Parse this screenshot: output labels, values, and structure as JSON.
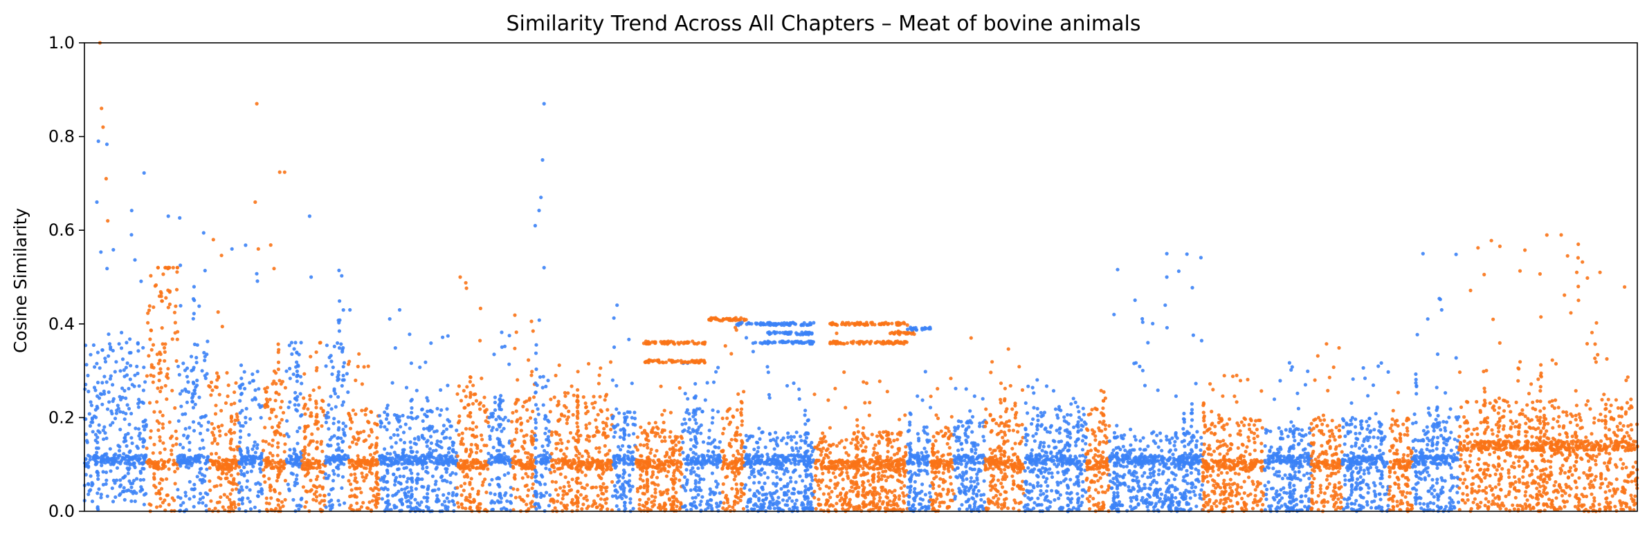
{
  "chart_data": {
    "type": "scatter",
    "title": "Similarity Trend Across All Chapters – Meat of bovine animals",
    "xlabel": "",
    "ylabel": "Cosine Similarity",
    "ylim": [
      0,
      1.0
    ],
    "y_ticks": [
      "0.0",
      "0.2",
      "0.4",
      "0.6",
      "0.8",
      "1.0"
    ],
    "x_ticks_visible": false,
    "grid": false,
    "legend": "none",
    "colors": {
      "blue": "#3b82f6",
      "orange": "#f97316"
    },
    "chapter_segments": [
      {
        "x_start": 0.0,
        "x_end": 0.04,
        "color": "blue",
        "base_low": 0.02,
        "base_high": 0.36,
        "band": 0.11,
        "peak": 0.79
      },
      {
        "x_start": 0.04,
        "x_end": 0.06,
        "color": "orange",
        "base_low": 0.0,
        "base_high": 0.52,
        "band": 0.1,
        "peak": 0.52
      },
      {
        "x_start": 0.06,
        "x_end": 0.08,
        "color": "blue",
        "base_low": 0.0,
        "base_high": 0.37,
        "band": 0.11,
        "peak": 0.63
      },
      {
        "x_start": 0.08,
        "x_end": 0.1,
        "color": "orange",
        "base_low": 0.0,
        "base_high": 0.3,
        "band": 0.1,
        "peak": 0.58
      },
      {
        "x_start": 0.1,
        "x_end": 0.115,
        "color": "blue",
        "base_low": 0.0,
        "base_high": 0.3,
        "band": 0.11,
        "peak": 0.57
      },
      {
        "x_start": 0.115,
        "x_end": 0.13,
        "color": "orange",
        "base_low": 0.0,
        "base_high": 0.3,
        "band": 0.1,
        "peak": 0.87
      },
      {
        "x_start": 0.13,
        "x_end": 0.14,
        "color": "blue",
        "base_low": 0.0,
        "base_high": 0.36,
        "band": 0.11,
        "peak": 0.36
      },
      {
        "x_start": 0.14,
        "x_end": 0.155,
        "color": "orange",
        "base_low": 0.0,
        "base_high": 0.26,
        "band": 0.1,
        "peak": 0.36
      },
      {
        "x_start": 0.155,
        "x_end": 0.17,
        "color": "blue",
        "base_low": 0.0,
        "base_high": 0.36,
        "band": 0.11,
        "peak": 0.63
      },
      {
        "x_start": 0.17,
        "x_end": 0.19,
        "color": "orange",
        "base_low": 0.0,
        "base_high": 0.22,
        "band": 0.1,
        "peak": 0.35
      },
      {
        "x_start": 0.19,
        "x_end": 0.24,
        "color": "blue",
        "base_low": 0.0,
        "base_high": 0.22,
        "band": 0.11,
        "peak": 0.43
      },
      {
        "x_start": 0.24,
        "x_end": 0.26,
        "color": "orange",
        "base_low": 0.0,
        "base_high": 0.27,
        "band": 0.1,
        "peak": 0.5
      },
      {
        "x_start": 0.26,
        "x_end": 0.275,
        "color": "blue",
        "base_low": 0.0,
        "base_high": 0.25,
        "band": 0.11,
        "peak": 0.43
      },
      {
        "x_start": 0.275,
        "x_end": 0.29,
        "color": "orange",
        "base_low": 0.0,
        "base_high": 0.25,
        "band": 0.1,
        "peak": 0.42
      },
      {
        "x_start": 0.29,
        "x_end": 0.3,
        "color": "blue",
        "base_low": 0.0,
        "base_high": 0.3,
        "band": 0.11,
        "peak": 0.87
      },
      {
        "x_start": 0.3,
        "x_end": 0.34,
        "color": "orange",
        "base_low": 0.0,
        "base_high": 0.25,
        "band": 0.1,
        "peak": 0.32
      },
      {
        "x_start": 0.34,
        "x_end": 0.355,
        "color": "blue",
        "base_low": 0.0,
        "base_high": 0.22,
        "band": 0.11,
        "peak": 0.44
      },
      {
        "x_start": 0.355,
        "x_end": 0.385,
        "color": "orange",
        "base_low": 0.0,
        "base_high": 0.18,
        "band": 0.1,
        "peak": 0.36
      },
      {
        "x_start": 0.385,
        "x_end": 0.41,
        "color": "blue",
        "base_low": 0.0,
        "base_high": 0.22,
        "band": 0.11,
        "peak": 0.32
      },
      {
        "x_start": 0.41,
        "x_end": 0.425,
        "color": "orange",
        "base_low": 0.0,
        "base_high": 0.22,
        "band": 0.1,
        "peak": 0.41
      },
      {
        "x_start": 0.425,
        "x_end": 0.47,
        "color": "blue",
        "base_low": 0.0,
        "base_high": 0.17,
        "band": 0.11,
        "peak": 0.4
      },
      {
        "x_start": 0.47,
        "x_end": 0.53,
        "color": "orange",
        "base_low": 0.0,
        "base_high": 0.17,
        "band": 0.1,
        "peak": 0.4
      },
      {
        "x_start": 0.53,
        "x_end": 0.545,
        "color": "blue",
        "base_low": 0.0,
        "base_high": 0.18,
        "band": 0.11,
        "peak": 0.4
      },
      {
        "x_start": 0.545,
        "x_end": 0.56,
        "color": "orange",
        "base_low": 0.0,
        "base_high": 0.18,
        "band": 0.1,
        "peak": 0.39
      },
      {
        "x_start": 0.56,
        "x_end": 0.58,
        "color": "blue",
        "base_low": 0.0,
        "base_high": 0.2,
        "band": 0.11,
        "peak": 0.27
      },
      {
        "x_start": 0.58,
        "x_end": 0.605,
        "color": "orange",
        "base_low": 0.0,
        "base_high": 0.22,
        "band": 0.1,
        "peak": 0.37
      },
      {
        "x_start": 0.605,
        "x_end": 0.645,
        "color": "blue",
        "base_low": 0.0,
        "base_high": 0.22,
        "band": 0.11,
        "peak": 0.29
      },
      {
        "x_start": 0.645,
        "x_end": 0.66,
        "color": "orange",
        "base_low": 0.0,
        "base_high": 0.22,
        "band": 0.1,
        "peak": 0.26
      },
      {
        "x_start": 0.66,
        "x_end": 0.72,
        "color": "blue",
        "base_low": 0.0,
        "base_high": 0.17,
        "band": 0.11,
        "peak": 0.55
      },
      {
        "x_start": 0.72,
        "x_end": 0.76,
        "color": "orange",
        "base_low": 0.0,
        "base_high": 0.2,
        "band": 0.1,
        "peak": 0.3
      },
      {
        "x_start": 0.76,
        "x_end": 0.79,
        "color": "blue",
        "base_low": 0.0,
        "base_high": 0.18,
        "band": 0.11,
        "peak": 0.32
      },
      {
        "x_start": 0.79,
        "x_end": 0.81,
        "color": "orange",
        "base_low": 0.0,
        "base_high": 0.2,
        "band": 0.1,
        "peak": 0.36
      },
      {
        "x_start": 0.81,
        "x_end": 0.84,
        "color": "blue",
        "base_low": 0.0,
        "base_high": 0.2,
        "band": 0.11,
        "peak": 0.32
      },
      {
        "x_start": 0.84,
        "x_end": 0.855,
        "color": "orange",
        "base_low": 0.0,
        "base_high": 0.2,
        "band": 0.1,
        "peak": 0.27
      },
      {
        "x_start": 0.855,
        "x_end": 0.885,
        "color": "blue",
        "base_low": 0.0,
        "base_high": 0.22,
        "band": 0.11,
        "peak": 0.55
      },
      {
        "x_start": 0.885,
        "x_end": 1.0,
        "color": "orange",
        "base_low": 0.0,
        "base_high": 0.24,
        "band": 0.14,
        "peak": 0.59
      }
    ],
    "horizontal_runs": [
      {
        "x_start": 0.36,
        "x_end": 0.4,
        "y": 0.36,
        "color": "orange"
      },
      {
        "x_start": 0.36,
        "x_end": 0.4,
        "y": 0.32,
        "color": "orange"
      },
      {
        "x_start": 0.4,
        "x_end": 0.43,
        "y": 0.41,
        "color": "orange"
      },
      {
        "x_start": 0.42,
        "x_end": 0.47,
        "y": 0.4,
        "color": "blue"
      },
      {
        "x_start": 0.43,
        "x_end": 0.47,
        "y": 0.36,
        "color": "blue"
      },
      {
        "x_start": 0.44,
        "x_end": 0.47,
        "y": 0.38,
        "color": "blue"
      },
      {
        "x_start": 0.48,
        "x_end": 0.53,
        "y": 0.4,
        "color": "orange"
      },
      {
        "x_start": 0.48,
        "x_end": 0.53,
        "y": 0.36,
        "color": "orange"
      },
      {
        "x_start": 0.52,
        "x_end": 0.535,
        "y": 0.38,
        "color": "orange"
      },
      {
        "x_start": 0.53,
        "x_end": 0.545,
        "y": 0.39,
        "color": "blue"
      }
    ],
    "highlight_points": [
      {
        "x": 0.01,
        "y": 1.0,
        "color": "orange"
      },
      {
        "x": 0.011,
        "y": 0.86,
        "color": "orange"
      },
      {
        "x": 0.012,
        "y": 0.82,
        "color": "orange"
      },
      {
        "x": 0.009,
        "y": 0.79,
        "color": "blue"
      },
      {
        "x": 0.014,
        "y": 0.71,
        "color": "orange"
      },
      {
        "x": 0.008,
        "y": 0.66,
        "color": "blue"
      },
      {
        "x": 0.015,
        "y": 0.62,
        "color": "orange"
      },
      {
        "x": 0.052,
        "y": 0.52,
        "color": "orange"
      },
      {
        "x": 0.055,
        "y": 0.47,
        "color": "orange"
      },
      {
        "x": 0.054,
        "y": 0.63,
        "color": "blue"
      },
      {
        "x": 0.083,
        "y": 0.58,
        "color": "orange"
      },
      {
        "x": 0.095,
        "y": 0.56,
        "color": "blue"
      },
      {
        "x": 0.111,
        "y": 0.87,
        "color": "orange"
      },
      {
        "x": 0.11,
        "y": 0.66,
        "color": "orange"
      },
      {
        "x": 0.112,
        "y": 0.56,
        "color": "orange"
      },
      {
        "x": 0.145,
        "y": 0.63,
        "color": "blue"
      },
      {
        "x": 0.146,
        "y": 0.5,
        "color": "blue"
      },
      {
        "x": 0.171,
        "y": 0.43,
        "color": "blue"
      },
      {
        "x": 0.203,
        "y": 0.43,
        "color": "blue"
      },
      {
        "x": 0.242,
        "y": 0.5,
        "color": "orange"
      },
      {
        "x": 0.296,
        "y": 0.87,
        "color": "blue"
      },
      {
        "x": 0.295,
        "y": 0.75,
        "color": "blue"
      },
      {
        "x": 0.294,
        "y": 0.67,
        "color": "blue"
      },
      {
        "x": 0.296,
        "y": 0.52,
        "color": "blue"
      },
      {
        "x": 0.343,
        "y": 0.44,
        "color": "blue"
      },
      {
        "x": 0.571,
        "y": 0.37,
        "color": "orange"
      },
      {
        "x": 0.697,
        "y": 0.55,
        "color": "blue"
      },
      {
        "x": 0.697,
        "y": 0.5,
        "color": "blue"
      },
      {
        "x": 0.696,
        "y": 0.44,
        "color": "blue"
      },
      {
        "x": 0.663,
        "y": 0.42,
        "color": "blue"
      },
      {
        "x": 0.862,
        "y": 0.55,
        "color": "blue"
      },
      {
        "x": 0.874,
        "y": 0.43,
        "color": "blue"
      },
      {
        "x": 0.951,
        "y": 0.59,
        "color": "orange"
      },
      {
        "x": 0.962,
        "y": 0.57,
        "color": "orange"
      },
      {
        "x": 0.961,
        "y": 0.51,
        "color": "orange"
      },
      {
        "x": 0.976,
        "y": 0.51,
        "color": "orange"
      },
      {
        "x": 0.962,
        "y": 0.48,
        "color": "orange"
      }
    ]
  }
}
